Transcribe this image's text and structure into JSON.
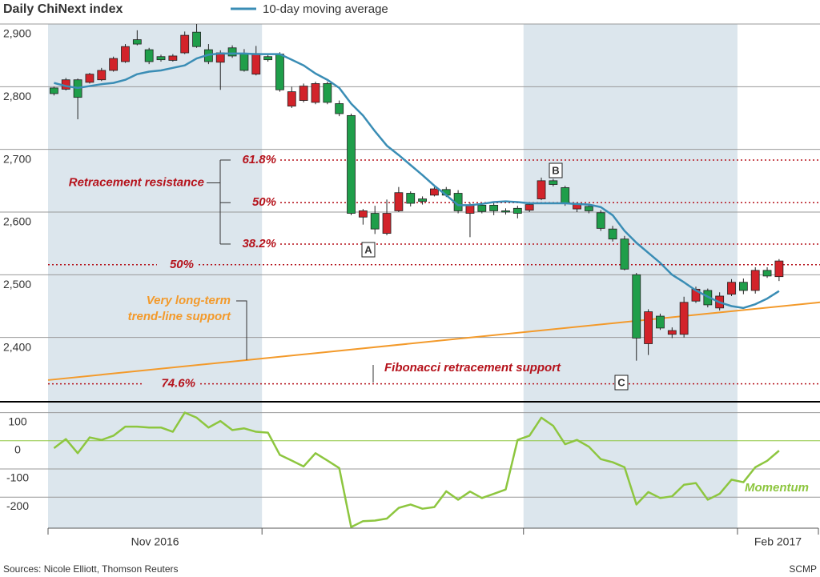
{
  "chart_data": {
    "type": "candlestick",
    "title": "Daily ChiNext index",
    "months": [
      {
        "label": "Nov 2016",
        "days": 18,
        "shaded": true
      },
      {
        "label": null,
        "days": 22,
        "shaded": false
      },
      {
        "label": null,
        "days": 18,
        "shaded": true
      },
      {
        "label": "Feb 2017",
        "days": 6,
        "shaded": false
      }
    ],
    "open": [
      2798,
      2796,
      2811,
      2807,
      2811,
      2826,
      2840,
      2875,
      2859,
      2848,
      2842,
      2854,
      2887,
      2859,
      2839,
      2862,
      2852,
      2820,
      2848,
      2852,
      2769,
      2778,
      2775,
      2805,
      2773,
      2754,
      2592,
      2598,
      2566,
      2602,
      2630,
      2621,
      2627,
      2636,
      2630,
      2598,
      2611,
      2611,
      2602,
      2606,
      2603,
      2621,
      2650,
      2639,
      2605,
      2609,
      2599,
      2573,
      2557,
      2500,
      2390,
      2434,
      2405,
      2405,
      2458,
      2475,
      2447,
      2469,
      2488,
      2475,
      2507,
      2497
    ],
    "high": [
      2800,
      2814,
      2813,
      2822,
      2830,
      2848,
      2868,
      2890,
      2862,
      2851,
      2852,
      2888,
      2900,
      2868,
      2858,
      2866,
      2860,
      2865,
      2851,
      2855,
      2800,
      2805,
      2808,
      2808,
      2778,
      2757,
      2605,
      2610,
      2620,
      2640,
      2633,
      2625,
      2640,
      2640,
      2635,
      2615,
      2614,
      2617,
      2606,
      2610,
      2616,
      2655,
      2653,
      2642,
      2615,
      2612,
      2603,
      2578,
      2562,
      2503,
      2445,
      2438,
      2416,
      2465,
      2481,
      2478,
      2472,
      2493,
      2494,
      2512,
      2512,
      2525
    ],
    "low": [
      2786,
      2794,
      2748,
      2805,
      2809,
      2824,
      2838,
      2866,
      2836,
      2840,
      2840,
      2852,
      2862,
      2836,
      2795,
      2846,
      2824,
      2818,
      2840,
      2792,
      2766,
      2775,
      2772,
      2772,
      2753,
      2595,
      2580,
      2565,
      2563,
      2600,
      2609,
      2612,
      2625,
      2624,
      2598,
      2560,
      2598,
      2595,
      2596,
      2590,
      2600,
      2619,
      2641,
      2610,
      2600,
      2598,
      2570,
      2553,
      2507,
      2363,
      2372,
      2412,
      2399,
      2400,
      2455,
      2448,
      2443,
      2466,
      2469,
      2470,
      2495,
      2490
    ],
    "close": [
      2789,
      2811,
      2783,
      2820,
      2826,
      2845,
      2864,
      2868,
      2840,
      2843,
      2849,
      2882,
      2864,
      2840,
      2854,
      2849,
      2826,
      2853,
      2843,
      2795,
      2792,
      2801,
      2805,
      2775,
      2757,
      2598,
      2602,
      2573,
      2598,
      2631,
      2614,
      2617,
      2637,
      2627,
      2602,
      2611,
      2601,
      2602,
      2600,
      2598,
      2612,
      2650,
      2644,
      2614,
      2612,
      2602,
      2574,
      2557,
      2509,
      2399,
      2441,
      2415,
      2411,
      2456,
      2477,
      2452,
      2466,
      2488,
      2475,
      2507,
      2498,
      2522
    ],
    "up_color": "#d2232a",
    "down_color": "#1f9e4a",
    "series": [
      {
        "name": "10-day moving average",
        "color": "#3a8db5",
        "values": [
          2806,
          2801,
          2798,
          2801,
          2804,
          2806,
          2811,
          2820,
          2824,
          2826,
          2830,
          2834,
          2845,
          2851,
          2853,
          2853,
          2853,
          2852,
          2852,
          2852,
          2843,
          2834,
          2821,
          2811,
          2798,
          2773,
          2754,
          2729,
          2706,
          2691,
          2675,
          2659,
          2642,
          2627,
          2611,
          2611,
          2613,
          2616,
          2617,
          2616,
          2614,
          2614,
          2614,
          2614,
          2613,
          2612,
          2608,
          2595,
          2570,
          2551,
          2535,
          2519,
          2500,
          2488,
          2475,
          2465,
          2456,
          2450,
          2447,
          2453,
          2462,
          2474
        ]
      }
    ],
    "ylim": [
      2300,
      2900
    ],
    "yticks": [
      {
        "value": 2400,
        "label": "2,400"
      },
      {
        "value": 2500,
        "label": "2,500"
      },
      {
        "value": 2600,
        "label": "2,600"
      },
      {
        "value": 2700,
        "label": "2,700"
      },
      {
        "value": 2800,
        "label": "2,800"
      },
      {
        "value": 2900,
        "label": "2,900"
      }
    ],
    "grid": true,
    "resistance": {
      "label": "Retracement resistance",
      "color": "#b5121b",
      "levels": [
        {
          "label": "61.8%",
          "value": 2683
        },
        {
          "label": "50%",
          "value": 2615
        },
        {
          "label": "38.2%",
          "value": 2549
        }
      ]
    },
    "support_levels": [
      {
        "label": "50%",
        "value": 2516
      },
      {
        "label": "74.6%",
        "value": 2326
      }
    ],
    "support_label": "Fibonacci retracement support",
    "trend_line": {
      "label": [
        "Very long-term",
        "trend-line support"
      ],
      "color": "#f39a2b",
      "values": [
        2332,
        2456
      ]
    },
    "points": [
      "A",
      "B",
      "C"
    ],
    "momentum": {
      "type": "line",
      "name": "Momentum",
      "color": "#8dc63f",
      "values": [
        -26,
        6,
        -44,
        12,
        3,
        18,
        50,
        50,
        47,
        47,
        32,
        100,
        82,
        47,
        70,
        38,
        44,
        32,
        29,
        -50,
        -70,
        -91,
        -44,
        -70,
        -97,
        -306,
        -285,
        -283,
        -276,
        -238,
        -226,
        -241,
        -235,
        -179,
        -209,
        -180,
        -203,
        -188,
        -173,
        3,
        18,
        82,
        53,
        -12,
        3,
        -21,
        -65,
        -76,
        -94,
        -226,
        -182,
        -203,
        -197,
        -156,
        -150,
        -209,
        -188,
        -138,
        -147,
        -94,
        -71,
        -35
      ],
      "ylim": [
        -310,
        130
      ],
      "yticks": [
        -200,
        -100,
        0,
        100
      ]
    },
    "source": "Sources: Nicole Elliott, Thomson Reuters",
    "credit": "SCMP"
  }
}
